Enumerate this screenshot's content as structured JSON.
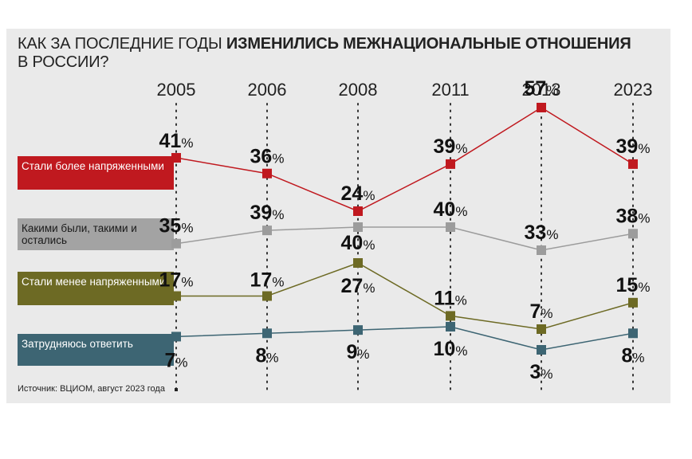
{
  "title": {
    "normal": "КАК ЗА ПОСЛЕДНИЕ ГОДЫ ",
    "bold": "ИЗМЕНИЛИСЬ МЕЖНАЦИОНАЛЬНЫЕ ОТНОШЕНИЯ",
    "line2": "В РОССИИ?"
  },
  "source": "Источник: ВЦИОМ, август 2023 года",
  "chart_data": {
    "type": "line",
    "title": "КАК ЗА ПОСЛЕДНИЕ ГОДЫ ИЗМЕНИЛИСЬ МЕЖНАЦИОНАЛЬНЫЕ ОТНОШЕНИЯ В РОССИИ?",
    "categories": [
      "2005",
      "2006",
      "2008",
      "2011",
      "2013",
      "2023"
    ],
    "unit": "%",
    "ylim": [
      0,
      60
    ],
    "grid": "vertical dotted lines at each year",
    "series": [
      {
        "name": "Стали более напряженными",
        "color": "#c0191f",
        "values": [
          41,
          36,
          24,
          39,
          57,
          39
        ]
      },
      {
        "name": "Какими были, такими и остались",
        "color": "#9c9c9c",
        "values": [
          35,
          39,
          40,
          40,
          33,
          38
        ]
      },
      {
        "name": "Стали менее напряженными",
        "color": "#6d6a24",
        "values": [
          17,
          17,
          27,
          11,
          7,
          15
        ]
      },
      {
        "name": "Затрудняюсь ответить",
        "color": "#3d6573",
        "values": [
          7,
          8,
          9,
          10,
          3,
          8
        ]
      }
    ]
  }
}
